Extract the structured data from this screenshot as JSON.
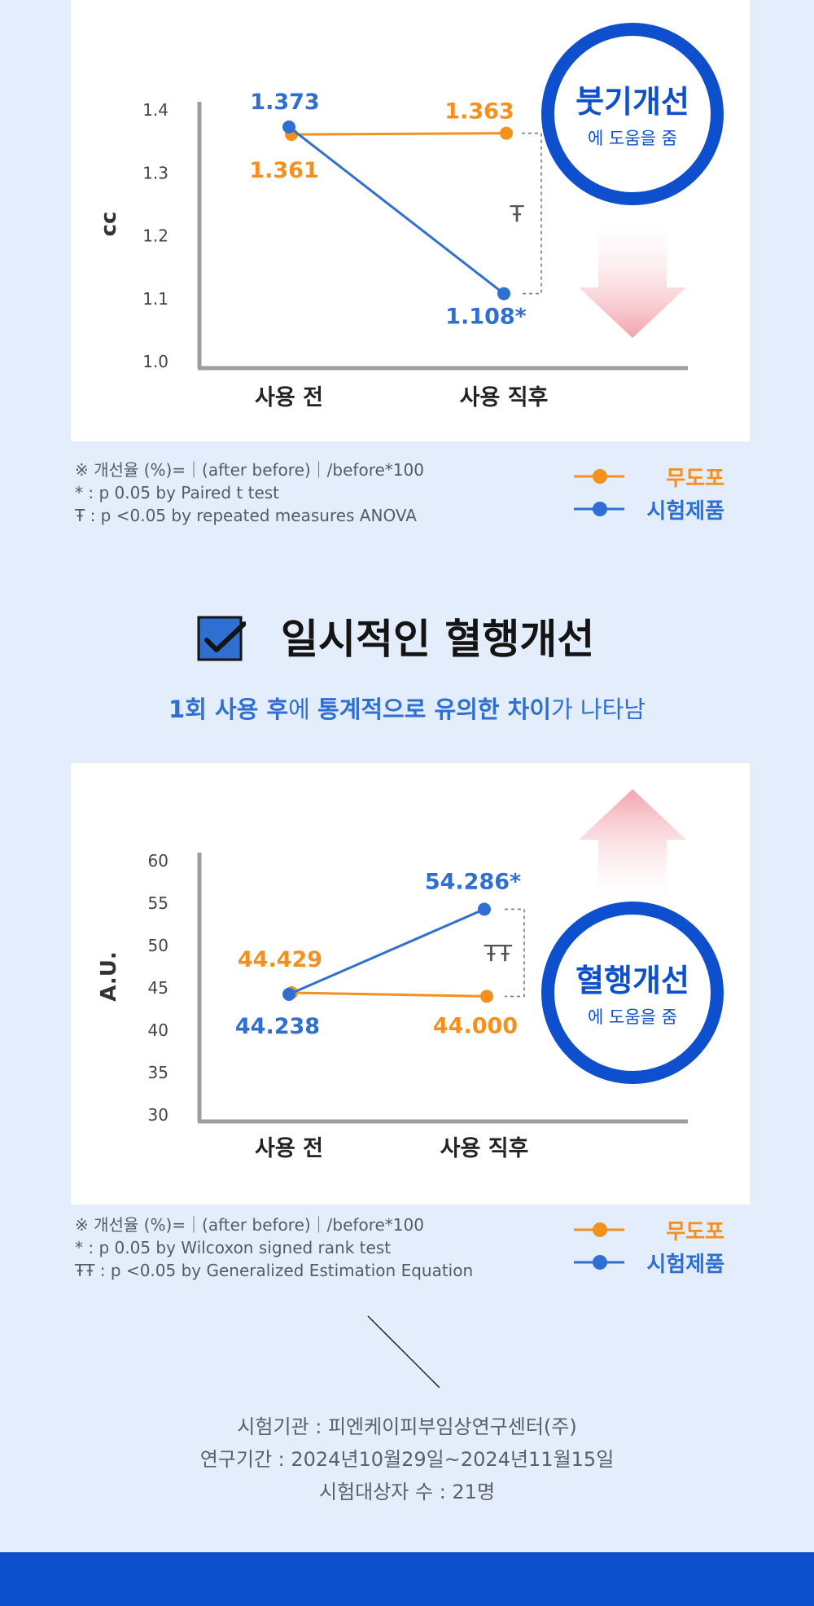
{
  "colors": {
    "orange": "#f5901e",
    "blue": "#2f6fd1",
    "deep_blue": "#0d4fcc",
    "axis_gray": "#9e9e9e",
    "arrow_pink": "#f3a3ad"
  },
  "chart_data": [
    {
      "type": "line",
      "ylabel": "cc",
      "categories": [
        "사용 전",
        "사용 직후"
      ],
      "ylim": [
        1.0,
        1.4
      ],
      "yticks": [
        "1.4",
        "1.3",
        "1.2",
        "1.1",
        "1.0"
      ],
      "series": [
        {
          "name": "무도포",
          "values": [
            1.361,
            1.363
          ],
          "labels": [
            "1.361",
            "1.363"
          ]
        },
        {
          "name": "시험제품",
          "values": [
            1.373,
            1.108
          ],
          "labels": [
            "1.373",
            "1.108*"
          ]
        }
      ],
      "significance_mark": "Ŧ",
      "badge": {
        "title": "붓기개선",
        "sub": "에 도움을 줌"
      },
      "arrow_direction": "down",
      "notes": [
        "※ 개선율 (%)=｜(after before)｜/before*100",
        "* : p 0.05 by Paired t test",
        "Ŧ : p <0.05 by repeated measures ANOVA"
      ]
    },
    {
      "type": "line",
      "ylabel": "A.U.",
      "categories": [
        "사용 전",
        "사용 직후"
      ],
      "ylim": [
        30,
        60
      ],
      "yticks": [
        "60",
        "55",
        "50",
        "45",
        "40",
        "35",
        "30"
      ],
      "series": [
        {
          "name": "무도포",
          "values": [
            44.429,
            44.0
          ],
          "labels": [
            "44.429",
            "44.000"
          ]
        },
        {
          "name": "시험제품",
          "values": [
            44.238,
            54.286
          ],
          "labels": [
            "44.238",
            "54.286*"
          ]
        }
      ],
      "significance_mark": "ŦŦ",
      "badge": {
        "title": "혈행개선",
        "sub": "에 도움을 줌"
      },
      "arrow_direction": "up",
      "notes": [
        "※ 개선율 (%)=｜(after before)｜/before*100",
        "* : p 0.05 by Wilcoxon signed rank test",
        "ŦŦ : p <0.05 by Generalized Estimation Equation"
      ]
    }
  ],
  "legend": [
    {
      "name": "무도포",
      "color": "#f5901e"
    },
    {
      "name": "시험제품",
      "color": "#2f6fd1"
    }
  ],
  "section": {
    "title": "일시적인 혈행개선",
    "icon": "checkbox-icon",
    "subtitle_parts": [
      {
        "text": "1회 사용 후",
        "bold": true
      },
      {
        "text": "에 ",
        "bold": false
      },
      {
        "text": "통계적으로 유의한 차이",
        "bold": true
      },
      {
        "text": "가 나타남",
        "bold": false
      }
    ]
  },
  "info": {
    "institution": "시험기관 : 피엔케이피부임상연구센터(주)",
    "period": "연구기간 : 2024년10월29일~2024년11월15일",
    "subjects": "시험대상자 수 : 21명"
  }
}
